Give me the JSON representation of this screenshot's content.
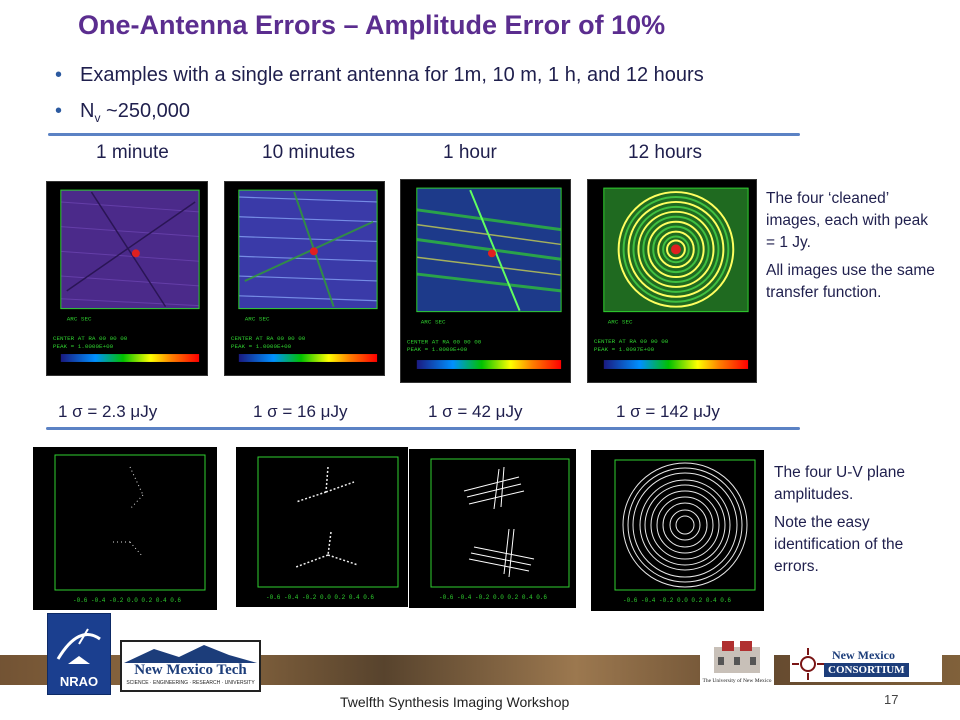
{
  "slide": {
    "title": "One-Antenna Errors – Amplitude Error of 10%",
    "bullets": [
      {
        "pre": "Examples with a single errant antenna for 1m, 10 m, 1 h, and 12 hours",
        "sub": ""
      },
      {
        "pre": "N",
        "sub": "v",
        "post": " ~250,000"
      }
    ],
    "time_labels": [
      "1 minute",
      "10 minutes",
      "1 hour",
      "12 hours"
    ],
    "sigma_labels": [
      "1 σ = 2.3 μJy",
      "1 σ = 16 μJy",
      "1 σ = 42 μJy",
      "1 σ = 142 μJy"
    ],
    "notes_top": [
      "The four ‘cleaned’ images, each with peak = 1 Jy.",
      "All images use the same transfer function."
    ],
    "notes_bottom": [
      "The four U-V plane amplitudes.",
      "Note the easy identification of the errors."
    ],
    "footer": "Twelfth Synthesis Imaging Workshop",
    "page_number": "17",
    "logos": {
      "nrao": "NRAO",
      "nmt_name": "New Mexico Tech",
      "nmt_tagline": "SCIENCE · ENGINEERING · RESEARCH · UNIVERSITY",
      "unm": "The University of New Mexico",
      "consortium_top": "New Mexico",
      "consortium_bottom": "CONSORTIUM"
    },
    "colors": {
      "title": "#5b2d8f",
      "accent": "#5b82c4",
      "plot_green": "#2fd12f"
    }
  }
}
